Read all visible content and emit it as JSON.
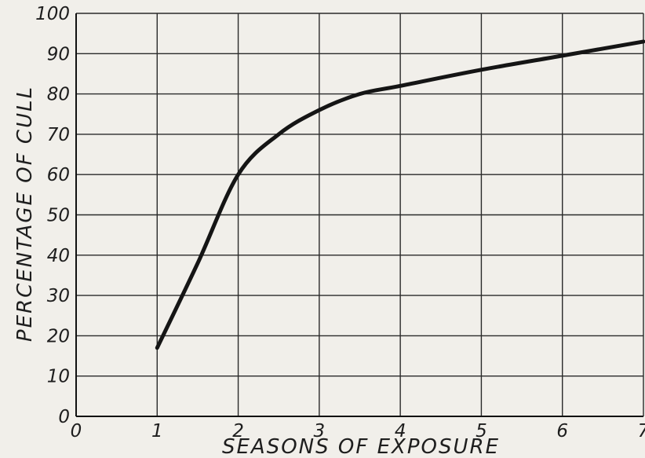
{
  "chart_data": {
    "type": "line",
    "title": "",
    "xlabel": "SEASONS OF EXPOSURE",
    "ylabel": "PERCENTAGE OF CULL",
    "xlim": [
      0,
      7
    ],
    "ylim": [
      0,
      100
    ],
    "grid": true,
    "x_tick_labels": [
      "0",
      "1",
      "2",
      "3",
      "4",
      "5",
      "6",
      "7"
    ],
    "y_tick_labels": [
      "0",
      "10",
      "20",
      "30",
      "40",
      "50",
      "60",
      "70",
      "80",
      "90",
      "100"
    ],
    "series": [
      {
        "x": [
          1,
          1.5,
          2,
          2.5,
          3,
          3.5,
          4,
          5,
          6,
          7
        ],
        "y": [
          17,
          38,
          60,
          70,
          76,
          80,
          82,
          86,
          89.5,
          93
        ]
      }
    ]
  }
}
